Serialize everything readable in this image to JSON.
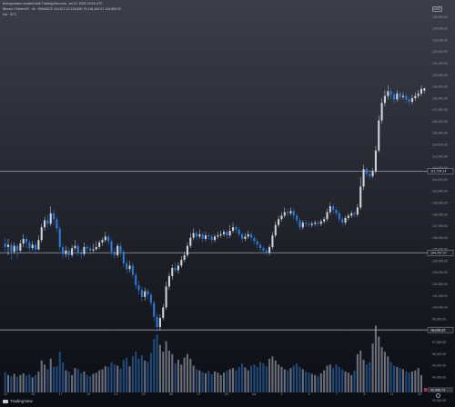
{
  "header": {
    "credit": "bernspossion created with TradingView.com, Jul 12, 2025 16:09 UTC",
    "symbol_line": "Bitcoin / TetherUS · 4h · BINANCE  118,672.23  118,890.75  118,440.01  118,859.02",
    "volume_line": "Vol · BTC"
  },
  "currency_badge": "USDT",
  "branding": "TradingView",
  "colors": {
    "up": "#d1d4dc",
    "down": "#2f7ad9",
    "vol_up": "#6b6f7c",
    "vol_down": "#214a7a",
    "line": "#b3b6c0",
    "axis_text": "#9499a4",
    "marker_bg": "#1d2029"
  },
  "icons": [
    "tradingview-logo-icon",
    "settings-gear-icon"
  ],
  "chart_data": {
    "type": "candlestick",
    "title": "Bitcoin / TetherUS · 4h · BINANCE",
    "ylabel": "",
    "ylim": [
      91590,
      126300
    ],
    "x_tick_labels": [
      "13",
      "15",
      "17",
      "19",
      "21",
      "23",
      "25",
      "27",
      "29",
      "Jul",
      "3",
      "5",
      "7",
      "9",
      "11",
      "13"
    ],
    "y_tick_labels": [
      "92,000.00",
      "93,000.00",
      "94,000.00",
      "95,000.00",
      "96,000.00",
      "97,000.00",
      "98,000.00",
      "99,000.00",
      "100,000.00",
      "101,000.00",
      "102,000.00",
      "103,000.00",
      "104,000.00",
      "105,000.00",
      "106,000.00",
      "107,000.00",
      "108,000.00",
      "109,000.00",
      "110,000.00",
      "111,000.00",
      "112,000.00",
      "113,000.00",
      "114,000.00",
      "115,000.00",
      "116,000.00",
      "117,000.00",
      "118,000.00",
      "119,000.00",
      "120,000.00",
      "121,000.00",
      "122,000.00",
      "123,000.00",
      "124,000.00",
      "125,000.00"
    ],
    "horizontal_lines": [
      {
        "value": 111734.14,
        "label": "111,734.14"
      },
      {
        "value": 104707.27,
        "label": "104,707.27"
      },
      {
        "value": 98068.37,
        "label": "98,068.37"
      }
    ],
    "current_volume_label": "92,996.73",
    "candles": [
      [
        105500,
        105200,
        106000,
        104700
      ],
      [
        105200,
        105400,
        105900,
        104500
      ],
      [
        105400,
        104800,
        105700,
        104100
      ],
      [
        104800,
        105300,
        105600,
        104600
      ],
      [
        105300,
        104900,
        105500,
        104200
      ],
      [
        104900,
        105500,
        105800,
        104700
      ],
      [
        105500,
        105900,
        106300,
        105200
      ],
      [
        105900,
        105600,
        106100,
        105100
      ],
      [
        105600,
        105100,
        105800,
        104700
      ],
      [
        105100,
        105400,
        105700,
        104900
      ],
      [
        105400,
        105000,
        105600,
        104600
      ],
      [
        105000,
        105800,
        106200,
        104900
      ],
      [
        105800,
        106900,
        107200,
        105600
      ],
      [
        106900,
        107500,
        107800,
        106600
      ],
      [
        107500,
        107200,
        108000,
        106800
      ],
      [
        107200,
        108100,
        108700,
        107000
      ],
      [
        108100,
        107600,
        108400,
        107100
      ],
      [
        107600,
        106800,
        107800,
        106500
      ],
      [
        106800,
        105200,
        107000,
        104900
      ],
      [
        105200,
        104600,
        105500,
        104200
      ],
      [
        104600,
        104900,
        105300,
        104300
      ],
      [
        104900,
        104500,
        105200,
        104100
      ],
      [
        104500,
        105100,
        105400,
        104300
      ],
      [
        105100,
        105300,
        105800,
        104900
      ],
      [
        105300,
        104700,
        105500,
        104400
      ],
      [
        104700,
        104600,
        105000,
        104200
      ],
      [
        104600,
        105200,
        105600,
        104400
      ],
      [
        105200,
        105100,
        105400,
        104800
      ],
      [
        105100,
        104900,
        105300,
        104500
      ],
      [
        104900,
        105000,
        105500,
        104700
      ],
      [
        105000,
        105200,
        105700,
        104900
      ],
      [
        105200,
        105600,
        105800,
        105000
      ],
      [
        105600,
        105800,
        106000,
        105300
      ],
      [
        105800,
        106100,
        106500,
        105600
      ],
      [
        106100,
        105700,
        106300,
        105400
      ],
      [
        105700,
        104800,
        105900,
        104500
      ],
      [
        104800,
        104500,
        105100,
        104200
      ],
      [
        104500,
        105300,
        105500,
        104300
      ],
      [
        105300,
        104800,
        105600,
        104400
      ],
      [
        104800,
        103800,
        105000,
        103500
      ],
      [
        103800,
        103300,
        104100,
        102900
      ],
      [
        103300,
        103600,
        104000,
        103000
      ],
      [
        103600,
        102800,
        103900,
        102500
      ],
      [
        102800,
        101900,
        103000,
        101600
      ],
      [
        101900,
        101500,
        102300,
        101100
      ],
      [
        101500,
        100900,
        101800,
        100500
      ],
      [
        100900,
        101400,
        101700,
        100600
      ],
      [
        101400,
        101100,
        101600,
        100700
      ],
      [
        101100,
        100400,
        101300,
        100100
      ],
      [
        100400,
        99200,
        100600,
        98800
      ],
      [
        99200,
        98300,
        99500,
        97900
      ],
      [
        98300,
        99100,
        99400,
        98000
      ],
      [
        99100,
        100000,
        100300,
        98900
      ],
      [
        100000,
        101800,
        102200,
        99800
      ],
      [
        101800,
        102700,
        103000,
        101500
      ],
      [
        102700,
        103400,
        103700,
        102400
      ],
      [
        103400,
        103200,
        103900,
        103000
      ],
      [
        103200,
        103600,
        103900,
        102900
      ],
      [
        103600,
        104100,
        104400,
        103400
      ],
      [
        104100,
        104500,
        104800,
        103900
      ],
      [
        104500,
        105300,
        105600,
        104300
      ],
      [
        105300,
        106000,
        106400,
        105100
      ],
      [
        106000,
        106400,
        106800,
        105800
      ],
      [
        106400,
        106100,
        106600,
        105800
      ],
      [
        106100,
        106300,
        106700,
        105900
      ],
      [
        106300,
        105900,
        106500,
        105600
      ],
      [
        105900,
        106200,
        106500,
        105700
      ],
      [
        106200,
        106100,
        106400,
        105800
      ],
      [
        106100,
        105800,
        106300,
        105500
      ],
      [
        105800,
        106100,
        106300,
        105600
      ],
      [
        106100,
        106200,
        106500,
        105900
      ],
      [
        106200,
        106300,
        106600,
        106000
      ],
      [
        106300,
        106500,
        106700,
        106100
      ],
      [
        106500,
        106200,
        106700,
        105900
      ],
      [
        106200,
        106600,
        107100,
        106000
      ],
      [
        106600,
        106900,
        107300,
        106400
      ],
      [
        106900,
        106700,
        107100,
        106400
      ],
      [
        106700,
        106300,
        106900,
        106100
      ],
      [
        106300,
        105900,
        106500,
        105600
      ],
      [
        105900,
        106100,
        106400,
        105700
      ],
      [
        106100,
        106300,
        106600,
        105900
      ],
      [
        106300,
        106000,
        106500,
        105700
      ],
      [
        106000,
        105700,
        106200,
        105400
      ],
      [
        105700,
        105400,
        105900,
        105100
      ],
      [
        105400,
        105100,
        105600,
        104800
      ],
      [
        105100,
        104900,
        105300,
        104600
      ],
      [
        104900,
        104700,
        105100,
        104500
      ],
      [
        104700,
        105200,
        105400,
        104500
      ],
      [
        105200,
        106200,
        106500,
        105000
      ],
      [
        106200,
        107100,
        107400,
        106000
      ],
      [
        107100,
        107600,
        107900,
        106900
      ],
      [
        107600,
        107900,
        108200,
        107400
      ],
      [
        107900,
        108200,
        108600,
        107700
      ],
      [
        108200,
        108100,
        108500,
        107800
      ],
      [
        108100,
        108300,
        108600,
        107900
      ],
      [
        108300,
        107900,
        108500,
        107600
      ],
      [
        107900,
        107500,
        108100,
        107200
      ],
      [
        107500,
        106900,
        107700,
        106600
      ],
      [
        106900,
        107300,
        107500,
        106700
      ],
      [
        107300,
        107200,
        107500,
        106900
      ],
      [
        107200,
        107100,
        107400,
        106900
      ],
      [
        107100,
        107200,
        107400,
        106900
      ],
      [
        107200,
        107300,
        107500,
        107000
      ],
      [
        107300,
        107200,
        107500,
        107000
      ],
      [
        107200,
        107400,
        107600,
        107000
      ],
      [
        107400,
        107600,
        107800,
        107200
      ],
      [
        107600,
        108200,
        108500,
        107400
      ],
      [
        108200,
        108700,
        109000,
        108000
      ],
      [
        108700,
        108400,
        108900,
        108100
      ],
      [
        108400,
        108100,
        108600,
        107900
      ],
      [
        108100,
        107600,
        108300,
        107300
      ],
      [
        107600,
        107300,
        107800,
        107000
      ],
      [
        107300,
        107700,
        107900,
        107100
      ],
      [
        107700,
        107900,
        108100,
        107500
      ],
      [
        107900,
        108100,
        108300,
        107700
      ],
      [
        108100,
        108000,
        108300,
        107800
      ],
      [
        108000,
        108600,
        108900,
        107800
      ],
      [
        108600,
        110400,
        111200,
        108400
      ],
      [
        110400,
        111900,
        112300,
        110100
      ],
      [
        111900,
        111500,
        112100,
        111200
      ],
      [
        111500,
        111300,
        111700,
        111000
      ],
      [
        111300,
        111700,
        112000,
        111100
      ],
      [
        111700,
        113500,
        113900,
        111500
      ],
      [
        113500,
        116100,
        116500,
        113300
      ],
      [
        116100,
        117600,
        118000,
        115800
      ],
      [
        117600,
        118200,
        118700,
        117300
      ],
      [
        118200,
        118600,
        119100,
        117900
      ],
      [
        118600,
        118300,
        118900,
        117900
      ],
      [
        118300,
        117900,
        118500,
        117500
      ],
      [
        117900,
        118400,
        118700,
        117700
      ],
      [
        118400,
        118100,
        118600,
        117800
      ],
      [
        118100,
        118200,
        118500,
        117900
      ],
      [
        118200,
        117900,
        118400,
        117600
      ],
      [
        117900,
        117700,
        118100,
        117400
      ],
      [
        117700,
        118000,
        118300,
        117500
      ],
      [
        118000,
        118200,
        118500,
        117800
      ],
      [
        118200,
        118400,
        118700,
        118000
      ],
      [
        118400,
        118800,
        119100,
        118200
      ],
      [
        118672,
        118859,
        118891,
        118440
      ]
    ],
    "volumes": [
      0.35,
      0.3,
      0.28,
      0.32,
      0.27,
      0.3,
      0.33,
      0.29,
      0.31,
      0.26,
      0.3,
      0.36,
      0.55,
      0.48,
      0.4,
      0.58,
      0.44,
      0.45,
      0.7,
      0.52,
      0.38,
      0.36,
      0.3,
      0.42,
      0.4,
      0.33,
      0.36,
      0.3,
      0.28,
      0.32,
      0.34,
      0.38,
      0.4,
      0.45,
      0.44,
      0.52,
      0.48,
      0.46,
      0.41,
      0.56,
      0.6,
      0.45,
      0.62,
      0.7,
      0.58,
      0.64,
      0.55,
      0.52,
      0.68,
      0.92,
      1.0,
      0.82,
      0.7,
      0.88,
      0.72,
      0.66,
      0.5,
      0.56,
      0.48,
      0.6,
      0.66,
      0.58,
      0.46,
      0.4,
      0.38,
      0.35,
      0.33,
      0.37,
      0.31,
      0.36,
      0.34,
      0.3,
      0.34,
      0.37,
      0.4,
      0.42,
      0.38,
      0.44,
      0.5,
      0.43,
      0.38,
      0.46,
      0.48,
      0.44,
      0.52,
      0.5,
      0.45,
      0.58,
      0.62,
      0.55,
      0.48,
      0.44,
      0.4,
      0.38,
      0.42,
      0.46,
      0.5,
      0.44,
      0.4,
      0.36,
      0.34,
      0.32,
      0.3,
      0.28,
      0.33,
      0.38,
      0.46,
      0.48,
      0.42,
      0.48,
      0.44,
      0.4,
      0.36,
      0.34,
      0.3,
      0.38,
      0.66,
      0.72,
      0.56,
      0.48,
      0.52,
      0.84,
      1.15,
      0.96,
      0.78,
      0.7,
      0.62,
      0.52,
      0.46,
      0.44,
      0.42,
      0.4,
      0.36,
      0.34,
      0.36,
      0.38,
      0.42,
      0.3
    ]
  }
}
